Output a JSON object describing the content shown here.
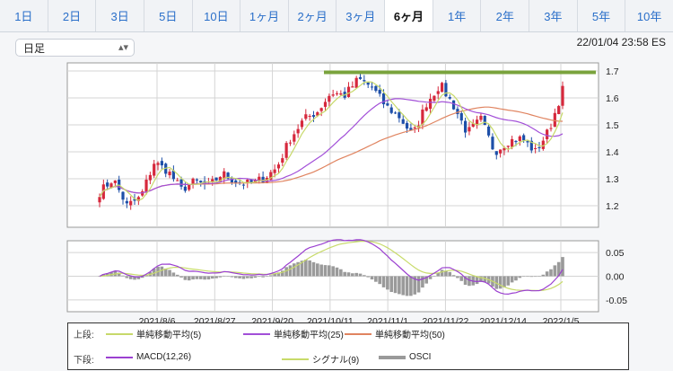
{
  "tabs": [
    "1日",
    "2日",
    "3日",
    "5日",
    "10日",
    "1ヶ月",
    "2ヶ月",
    "3ヶ月",
    "6ヶ月",
    "1年",
    "2年",
    "3年",
    "5年",
    "10年"
  ],
  "active_tab": "6ヶ月",
  "selector": {
    "label": "日足",
    "icon": "chevron-updown-icon"
  },
  "timestamp": "22/01/04 23:58 ES",
  "colors": {
    "candle_up": "#d6283c",
    "candle_down": "#1d4fa8",
    "ma5": "#c7d96a",
    "ma25": "#a24fd8",
    "ma50": "#e08460",
    "resistance": "#7aa33d",
    "macd": "#9b40d0",
    "signal": "#c8db6a",
    "osci": "#9a9a9a"
  },
  "legend": {
    "upper": {
      "label": "上段:",
      "items": [
        "単純移動平均(5)",
        "単純移動平均(25)",
        "単純移動平均(50)"
      ]
    },
    "lower": {
      "label": "下段:",
      "items": [
        "MACD(12,26)",
        "シグナル(9)",
        "OSCI"
      ]
    }
  },
  "chart_data": [
    {
      "type": "candlestick",
      "x_labels": [
        "2021/8/6",
        "2021/8/27",
        "2021/9/20",
        "2021/10/11",
        "2021/11/1",
        "2021/11/22",
        "2021/12/14",
        "2022/1/5"
      ],
      "y_ticks": [
        "1.2",
        "1.3",
        "1.4",
        "1.5",
        "1.6",
        "1.7"
      ],
      "ylim": [
        1.12,
        1.73
      ],
      "grid": true,
      "resistance_level": 1.695,
      "close_path": [
        1.25,
        1.3,
        1.2,
        1.23,
        1.36,
        1.33,
        1.26,
        1.29,
        1.27,
        1.32,
        1.29,
        1.28,
        1.3,
        1.34,
        1.45,
        1.52,
        1.55,
        1.62,
        1.61,
        1.67,
        1.64,
        1.57,
        1.53,
        1.46,
        1.58,
        1.65,
        1.57,
        1.47,
        1.52,
        1.4,
        1.44,
        1.45,
        1.4,
        1.48,
        1.63
      ]
    },
    {
      "type": "macd",
      "y_ticks": [
        "0.05",
        "0.00",
        "-0.05"
      ],
      "ylim": [
        -0.075,
        0.075
      ]
    }
  ]
}
